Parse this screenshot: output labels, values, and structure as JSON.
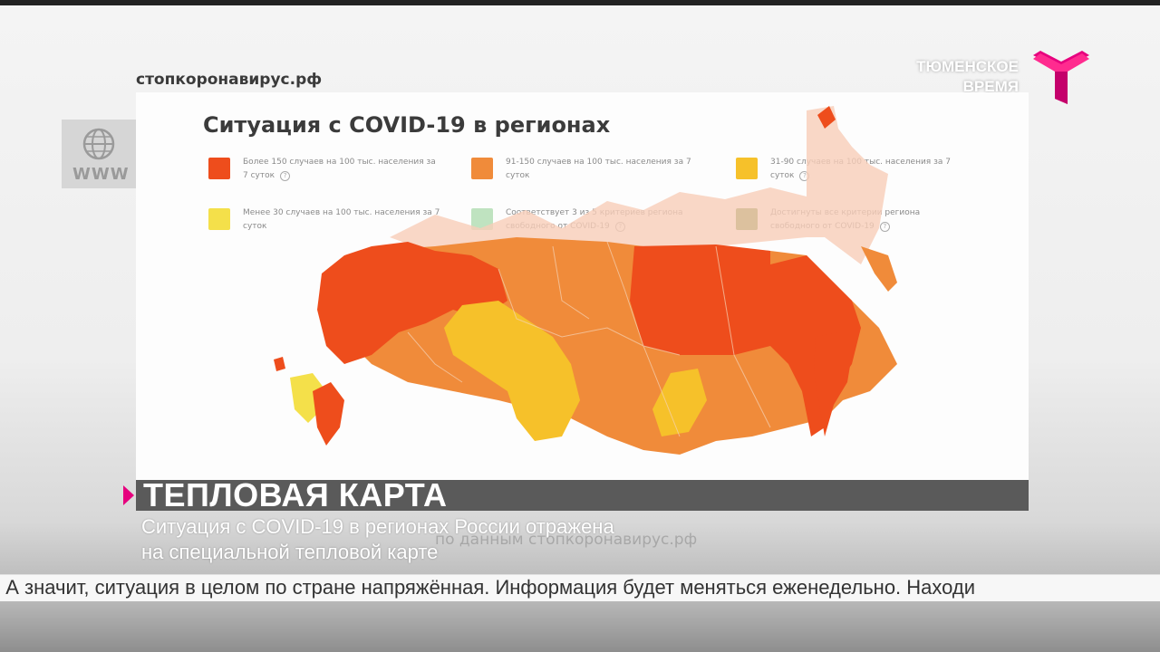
{
  "source_url": "стопкоронавирус.рф",
  "bg_icon": {
    "label": "WWW",
    "icon": "globe-icon"
  },
  "channel_logo": {
    "line1": "ТЮМЕНСКОЕ",
    "line2": "ВРЕМЯ",
    "icon": "t-logo-icon",
    "color": "#e6007e"
  },
  "map_card": {
    "title": "Ситуация с COVID-19 в регионах",
    "legend": [
      {
        "text": "Более 150 случаев на 100 тыс. населения за 7 суток",
        "color": "#ee4d1c"
      },
      {
        "text": "91-150 случаев на 100 тыс. населения за 7 суток",
        "color": "#f08b3a"
      },
      {
        "text": "31-90 случаев на 100 тыс. населения за 7 суток",
        "color": "#f6c12a"
      },
      {
        "text": "Менее 30 случаев на 100 тыс. населения за 7 суток",
        "color": "#f4e04a"
      },
      {
        "text": "Соответствует 3 из 5 критериев региона свободного от COVID-19",
        "color": "#bfe3c0"
      },
      {
        "text": "Достигнуты все критерии региона свободного от COVID-19",
        "color": "#6f8f3a"
      }
    ]
  },
  "caption": {
    "title": "ТЕПЛОВАЯ КАРТА",
    "subtitle_line1": "Ситуация с COVID-19 в регионах России отражена",
    "subtitle_line2": "на специальной тепловой карте",
    "watermark": "по данным стопкоронавирус.рф"
  },
  "ticker": {
    "text": ". А значит, ситуация в целом по стране напряжённая. Информация будет меняться еженедельно. Находи"
  }
}
